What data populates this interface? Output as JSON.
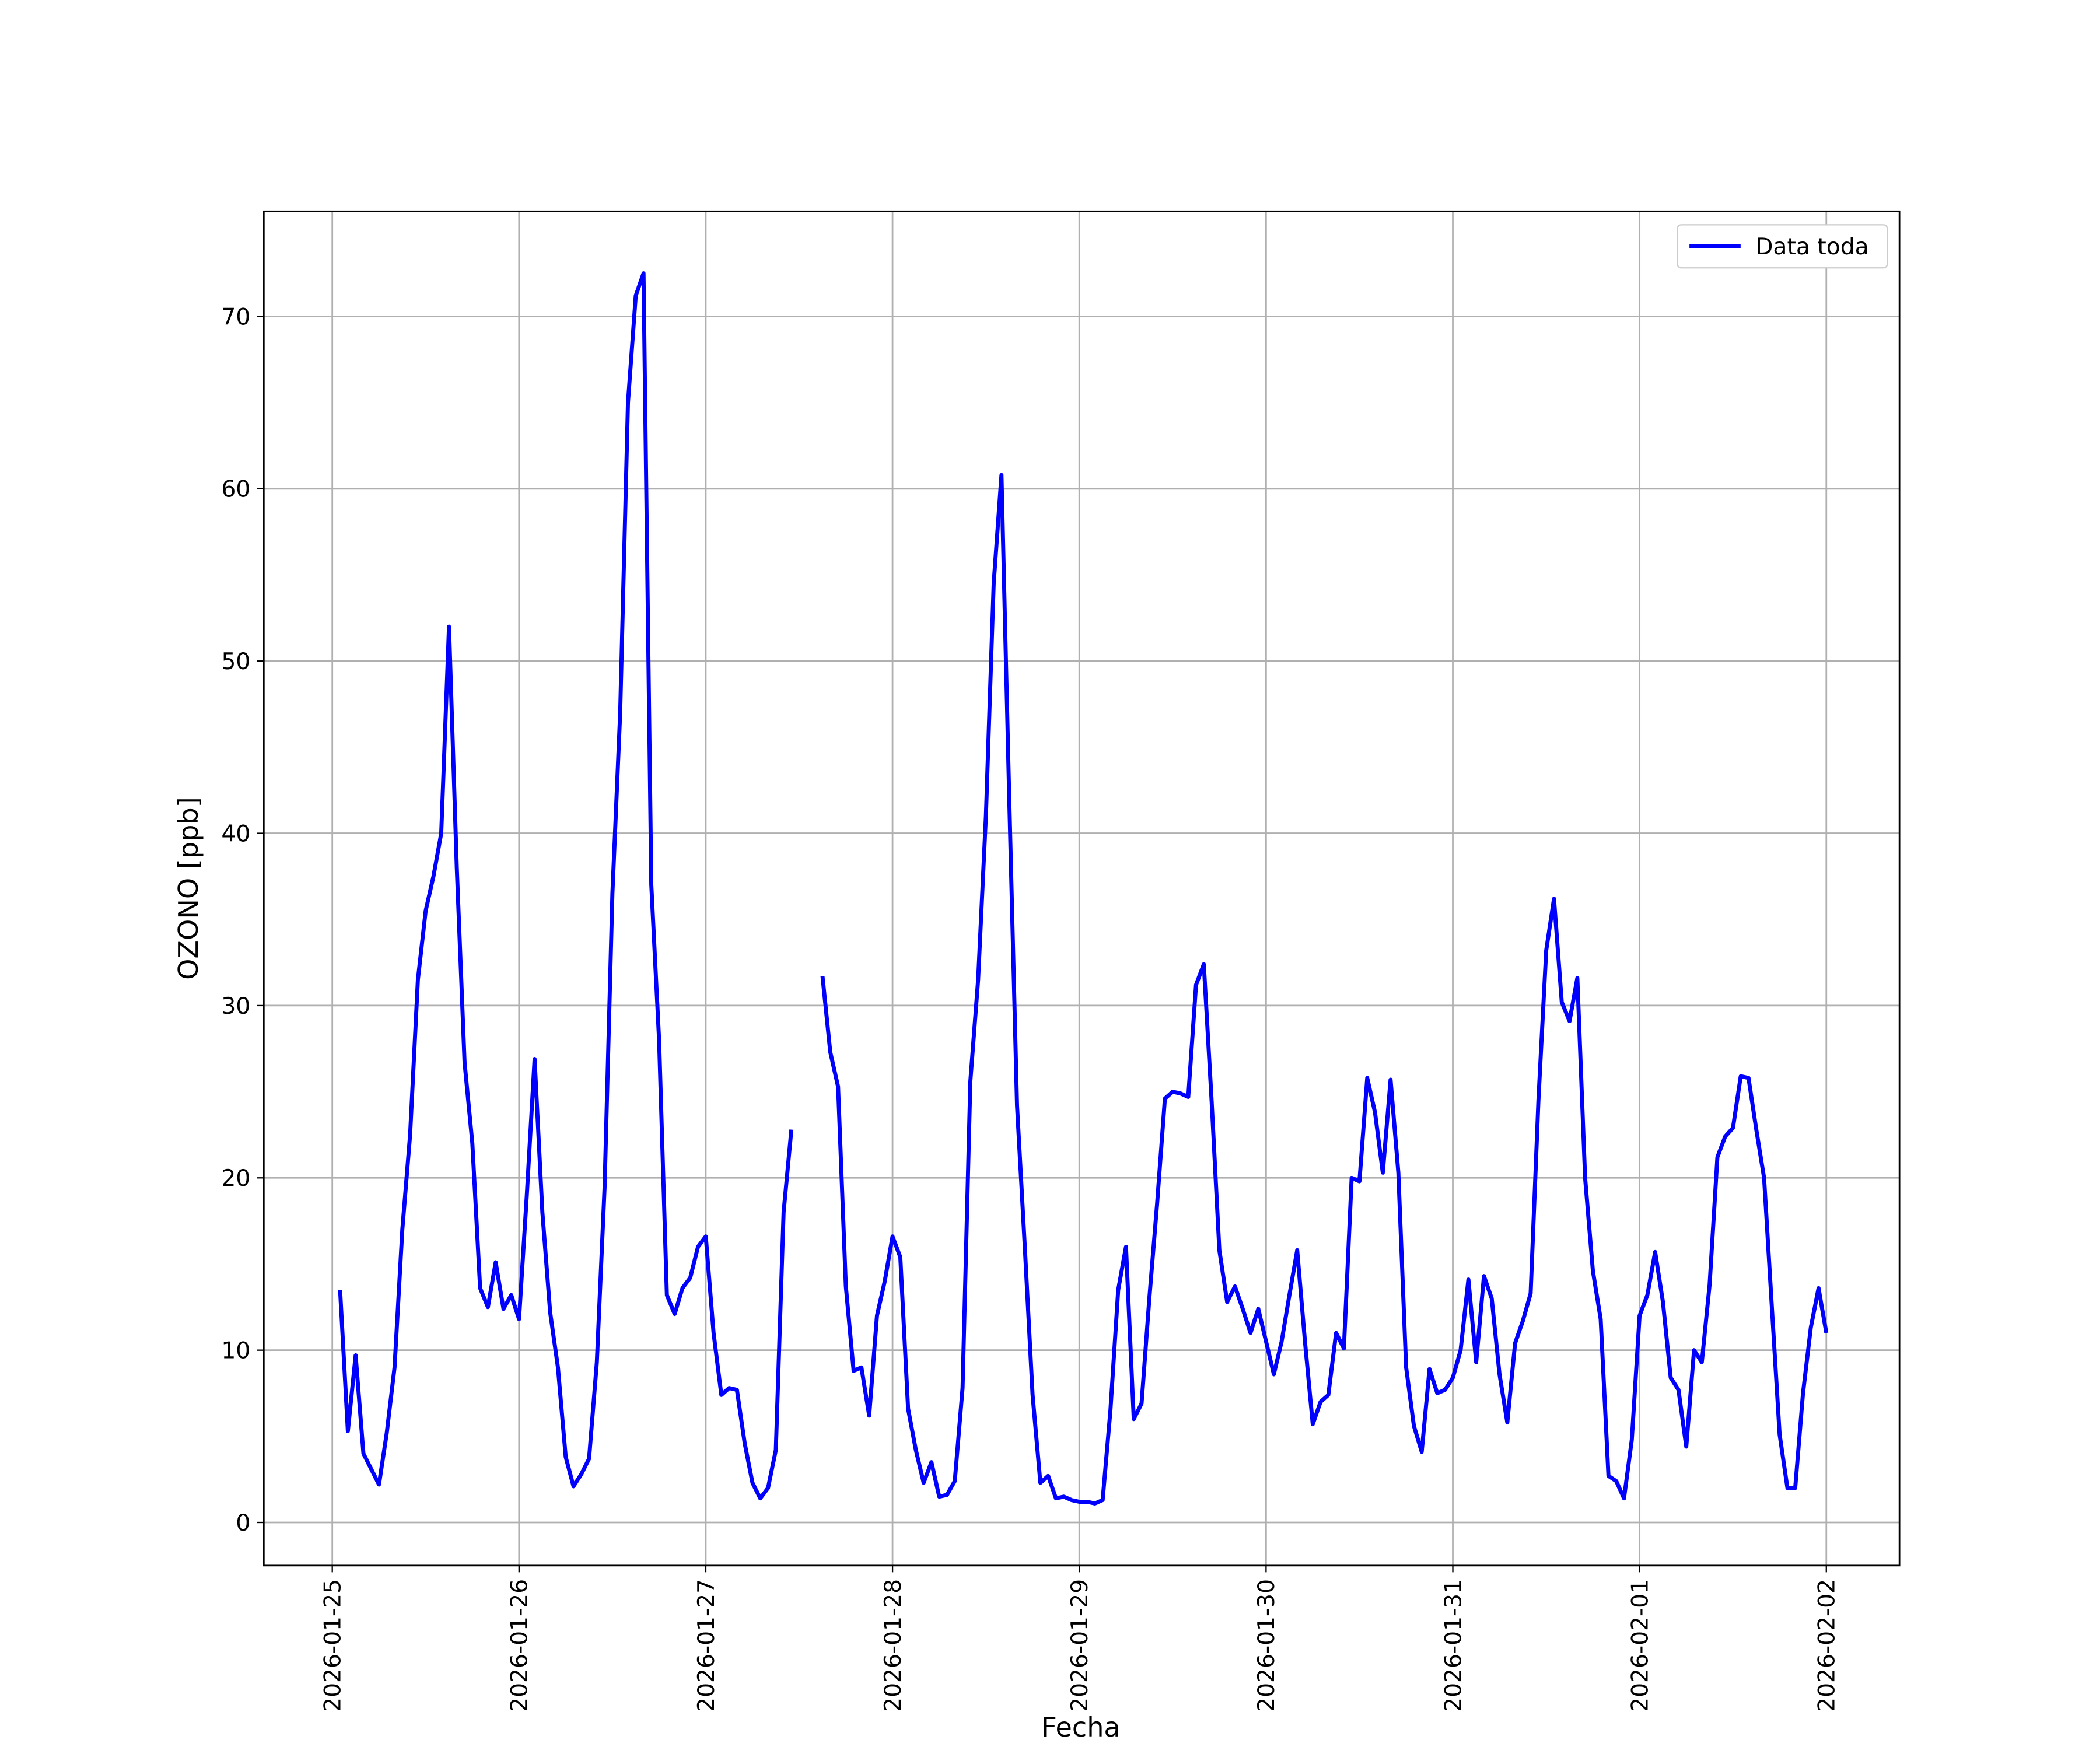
{
  "chart_data": {
    "type": "line",
    "xlabel": "Fecha",
    "ylabel": "OZONO [ppb]",
    "x": [
      "2026-01-25 01:00",
      "2026-01-25 02:00",
      "2026-01-25 03:00",
      "2026-01-25 04:00",
      "2026-01-25 05:00",
      "2026-01-25 06:00",
      "2026-01-25 07:00",
      "2026-01-25 08:00",
      "2026-01-25 09:00",
      "2026-01-25 10:00",
      "2026-01-25 11:00",
      "2026-01-25 12:00",
      "2026-01-25 13:00",
      "2026-01-25 14:00",
      "2026-01-25 15:00",
      "2026-01-25 16:00",
      "2026-01-25 17:00",
      "2026-01-25 18:00",
      "2026-01-25 19:00",
      "2026-01-25 20:00",
      "2026-01-25 21:00",
      "2026-01-25 22:00",
      "2026-01-25 23:00",
      "2026-01-26 00:00",
      "2026-01-26 01:00",
      "2026-01-26 02:00",
      "2026-01-26 03:00",
      "2026-01-26 04:00",
      "2026-01-26 05:00",
      "2026-01-26 06:00",
      "2026-01-26 07:00",
      "2026-01-26 08:00",
      "2026-01-26 09:00",
      "2026-01-26 10:00",
      "2026-01-26 11:00",
      "2026-01-26 12:00",
      "2026-01-26 13:00",
      "2026-01-26 14:00",
      "2026-01-26 15:00",
      "2026-01-26 16:00",
      "2026-01-26 17:00",
      "2026-01-26 18:00",
      "2026-01-26 19:00",
      "2026-01-26 20:00",
      "2026-01-26 21:00",
      "2026-01-26 22:00",
      "2026-01-26 23:00",
      "2026-01-27 00:00",
      "2026-01-27 01:00",
      "2026-01-27 02:00",
      "2026-01-27 03:00",
      "2026-01-27 04:00",
      "2026-01-27 05:00",
      "2026-01-27 06:00",
      "2026-01-27 07:00",
      "2026-01-27 08:00",
      "2026-01-27 09:00",
      "2026-01-27 10:00",
      "2026-01-27 11:00",
      "2026-01-27 12:00",
      "2026-01-27 13:00",
      "2026-01-27 14:00",
      "2026-01-27 15:00",
      "2026-01-27 16:00",
      "2026-01-27 17:00",
      "2026-01-27 18:00",
      "2026-01-27 19:00",
      "2026-01-27 20:00",
      "2026-01-27 21:00",
      "2026-01-27 22:00",
      "2026-01-27 23:00",
      "2026-01-28 00:00",
      "2026-01-28 01:00",
      "2026-01-28 02:00",
      "2026-01-28 03:00",
      "2026-01-28 04:00",
      "2026-01-28 05:00",
      "2026-01-28 06:00",
      "2026-01-28 07:00",
      "2026-01-28 08:00",
      "2026-01-28 09:00",
      "2026-01-28 10:00",
      "2026-01-28 11:00",
      "2026-01-28 12:00",
      "2026-01-28 13:00",
      "2026-01-28 14:00",
      "2026-01-28 15:00",
      "2026-01-28 16:00",
      "2026-01-28 17:00",
      "2026-01-28 18:00",
      "2026-01-28 19:00",
      "2026-01-28 20:00",
      "2026-01-28 21:00",
      "2026-01-28 22:00",
      "2026-01-28 23:00",
      "2026-01-29 00:00",
      "2026-01-29 01:00",
      "2026-01-29 02:00",
      "2026-01-29 03:00",
      "2026-01-29 04:00",
      "2026-01-29 05:00",
      "2026-01-29 06:00",
      "2026-01-29 07:00",
      "2026-01-29 08:00",
      "2026-01-29 09:00",
      "2026-01-29 10:00",
      "2026-01-29 11:00",
      "2026-01-29 12:00",
      "2026-01-29 13:00",
      "2026-01-29 14:00",
      "2026-01-29 15:00",
      "2026-01-29 16:00",
      "2026-01-29 17:00",
      "2026-01-29 18:00",
      "2026-01-29 19:00",
      "2026-01-29 20:00",
      "2026-01-29 21:00",
      "2026-01-29 22:00",
      "2026-01-29 23:00",
      "2026-01-30 00:00",
      "2026-01-30 01:00",
      "2026-01-30 02:00",
      "2026-01-30 03:00",
      "2026-01-30 04:00",
      "2026-01-30 05:00",
      "2026-01-30 06:00",
      "2026-01-30 07:00",
      "2026-01-30 08:00",
      "2026-01-30 09:00",
      "2026-01-30 10:00",
      "2026-01-30 11:00",
      "2026-01-30 12:00",
      "2026-01-30 13:00",
      "2026-01-30 14:00",
      "2026-01-30 15:00",
      "2026-01-30 16:00",
      "2026-01-30 17:00",
      "2026-01-30 18:00",
      "2026-01-30 19:00",
      "2026-01-30 20:00",
      "2026-01-30 21:00",
      "2026-01-30 22:00",
      "2026-01-30 23:00",
      "2026-01-31 00:00",
      "2026-01-31 01:00",
      "2026-01-31 02:00",
      "2026-01-31 03:00",
      "2026-01-31 04:00",
      "2026-01-31 05:00",
      "2026-01-31 06:00",
      "2026-01-31 07:00",
      "2026-01-31 08:00",
      "2026-01-31 09:00",
      "2026-01-31 10:00",
      "2026-01-31 11:00",
      "2026-01-31 12:00",
      "2026-01-31 13:00",
      "2026-01-31 14:00",
      "2026-01-31 15:00",
      "2026-01-31 16:00",
      "2026-01-31 17:00",
      "2026-01-31 18:00",
      "2026-01-31 19:00",
      "2026-01-31 20:00",
      "2026-01-31 21:00",
      "2026-01-31 22:00",
      "2026-01-31 23:00",
      "2026-02-01 00:00",
      "2026-02-01 01:00",
      "2026-02-01 02:00",
      "2026-02-01 03:00",
      "2026-02-01 04:00",
      "2026-02-01 05:00",
      "2026-02-01 06:00",
      "2026-02-01 07:00",
      "2026-02-01 08:00",
      "2026-02-01 09:00",
      "2026-02-01 10:00",
      "2026-02-01 11:00",
      "2026-02-01 12:00",
      "2026-02-01 13:00",
      "2026-02-01 14:00",
      "2026-02-01 15:00",
      "2026-02-01 16:00",
      "2026-02-01 17:00",
      "2026-02-01 18:00",
      "2026-02-01 19:00",
      "2026-02-01 20:00",
      "2026-02-01 21:00",
      "2026-02-01 22:00",
      "2026-02-01 23:00",
      "2026-02-02 00:00"
    ],
    "series": [
      {
        "name": "Data toda",
        "color": "#0000ff",
        "values": [
          13.5,
          5.3,
          9.7,
          4.0,
          3.1,
          2.2,
          5.2,
          9.0,
          17,
          22.5,
          31.5,
          35.5,
          37.5,
          40,
          52,
          38,
          26.7,
          22,
          13.6,
          12.5,
          15.1,
          12.4,
          13.2,
          11.8,
          19,
          26.9,
          18,
          12.2,
          9.0,
          3.8,
          2.1,
          2.8,
          3.7,
          9.3,
          19.5,
          36.5,
          47,
          65,
          71.2,
          72.5,
          37,
          28,
          13.2,
          12.1,
          13.6,
          14.2,
          16,
          16.6,
          11,
          7.4,
          7.8,
          7.7,
          4.6,
          2.3,
          1.4,
          2.0,
          4.2,
          18,
          22.8,
          null,
          null,
          null,
          31.7,
          27.3,
          25.3,
          13.7,
          8.8,
          9.0,
          6.2,
          12,
          14,
          16.6,
          15.4,
          6.6,
          4.2,
          2.3,
          3.5,
          1.5,
          1.6,
          2.4,
          7.8,
          25.6,
          31.5,
          41,
          54.5,
          60.8,
          42,
          24.2,
          16,
          7.4,
          2.3,
          2.7,
          1.4,
          1.5,
          1.3,
          1.2,
          1.2,
          1.1,
          1.3,
          6.5,
          13.5,
          16,
          6.0,
          6.9,
          13,
          18.5,
          24.6,
          25,
          24.9,
          24.7,
          31.2,
          32.4,
          24.5,
          15.8,
          12.8,
          13.7,
          12.4,
          11,
          12.4,
          10.5,
          8.6,
          10.5,
          13.2,
          15.8,
          10.5,
          5.7,
          7.0,
          7.4,
          11,
          10.1,
          20,
          19.8,
          25.8,
          23.8,
          20.3,
          25.7,
          20.3,
          9,
          5.6,
          4.1,
          8.9,
          7.5,
          7.7,
          8.4,
          10,
          14.1,
          9.3,
          14.3,
          13,
          8.6,
          5.8,
          10.4,
          11.7,
          13.3,
          24.5,
          33.2,
          36.2,
          30.2,
          29.1,
          31.6,
          20,
          14.6,
          11.8,
          2.7,
          2.4,
          1.4,
          4.8,
          12,
          13.2,
          15.7,
          12.8,
          8.4,
          7.7,
          4.4,
          10,
          9.3,
          13.8,
          21.2,
          22.4,
          22.9,
          25.9,
          25.8,
          22.8,
          20,
          12.5,
          5.1,
          2.0,
          2.0,
          7.5,
          11.3,
          13.6,
          11
        ]
      }
    ],
    "xlim": [
      "2026-01-24 15:12",
      "2026-02-02 09:24"
    ],
    "xticks": [
      "2026-01-25",
      "2026-01-26",
      "2026-01-27",
      "2026-01-28",
      "2026-01-29",
      "2026-01-30",
      "2026-01-31",
      "2026-02-01",
      "2026-02-02"
    ],
    "ylim": [
      -2.5,
      76.1
    ],
    "yticks": [
      0,
      10,
      20,
      30,
      40,
      50,
      60,
      70
    ],
    "grid": true,
    "legend": "upper right"
  }
}
